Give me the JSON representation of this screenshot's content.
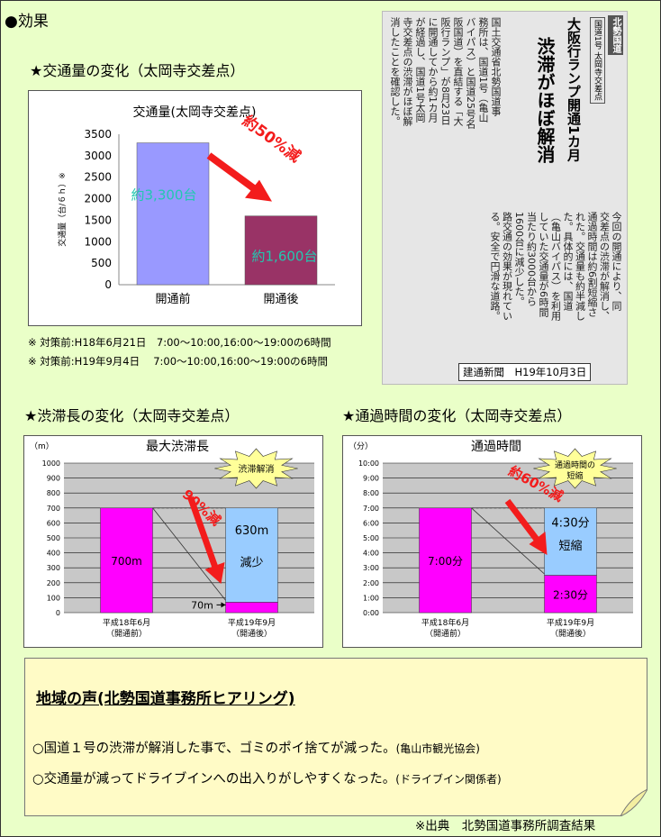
{
  "heading": "●効果",
  "traffic": {
    "section_title": "★交通量の変化（太岡寺交差点）",
    "notes": [
      "※ 対策前:H18年6月21日　7:00〜10:00,16:00〜19:00の6時間",
      "※ 対策前:H19年9月4日　 7:00〜10:00,16:00〜19:00の6時間"
    ]
  },
  "jam": {
    "section_title": "★渋滞長の変化（太岡寺交差点）"
  },
  "time": {
    "section_title": "★通過時間の変化（太岡寺交差点）"
  },
  "news": {
    "caption": "建通新聞　H19年10月3日",
    "tag": "北勢国道",
    "tag2": "国道1号 太岡寺交差点",
    "headline": "大阪行ランプ開通1カ月",
    "subhead": "渋滞がほぼ解消",
    "columns": [
      "国土交通省北勢国道事",
      "務所は、国道1号（亀山",
      "バイパス）と国道25号名",
      "阪国道）を直結する「大",
      "阪行ランプ」が8月23日",
      "に開通してから約1カ月",
      "が経過し、国道1号太岡",
      "寺交差点の渋滞がほぼ解",
      "消したことを確認した。",
      "今回の開通により、同",
      "交差点の渋滞が解消し、",
      "通過時間は約6割短縮さ",
      "れた。交通量も約半減し",
      "た。具体的には、国道",
      "（亀山バイパス）を利用",
      "していた交通量が6時間",
      "当たり約3000台から",
      "1600台に減少した。",
      "路交通の効果が現れてい",
      "る。安全で円滑な道路。"
    ]
  },
  "chart_data": [
    {
      "type": "bar",
      "title": "交通量(太岡寺交差点)",
      "ylabel": "交通量（台/６ｈ）※",
      "categories": [
        "開通前",
        "開通後"
      ],
      "values": [
        3300,
        1600
      ],
      "yticks": [
        "0",
        "500",
        "1000",
        "1500",
        "2000",
        "2500",
        "3000",
        "3500"
      ],
      "ylim": [
        0,
        3500
      ],
      "data_labels": [
        "約3,300台",
        "約1,600台"
      ],
      "annotation": "約50%減",
      "colors": [
        "#9999ff",
        "#993366"
      ]
    },
    {
      "type": "bar",
      "title": "最大渋滞長",
      "unit": "（m）",
      "categories": [
        "平成18年6月",
        "平成19年9月"
      ],
      "sublabels": [
        "（開通前）",
        "（開通後）"
      ],
      "values": [
        700,
        70
      ],
      "reduced": 630,
      "yticks": [
        "0",
        "100",
        "200",
        "300",
        "400",
        "500",
        "600",
        "700",
        "800",
        "900",
        "1000"
      ],
      "ylim": [
        0,
        1000
      ],
      "data_labels": [
        "700m",
        "70m"
      ],
      "reduced_labels": [
        "630m",
        "減少"
      ],
      "annotation": "90%減",
      "burst": "渋滞解消",
      "colors": [
        "#ff00ff",
        "#99ccff"
      ]
    },
    {
      "type": "bar",
      "title": "通過時間",
      "unit": "（分）",
      "categories": [
        "平成18年6月",
        "平成19年9月"
      ],
      "sublabels": [
        "（開通前）",
        "（開通後）"
      ],
      "values": [
        7.0,
        2.5
      ],
      "reduced": 4.5,
      "yticks": [
        "0:00",
        "1:00",
        "2:00",
        "3:00",
        "4:00",
        "5:00",
        "6:00",
        "7:00",
        "8:00",
        "9:00",
        "10:00"
      ],
      "ylim": [
        0,
        10
      ],
      "data_labels": [
        "7:00分",
        "2:30分"
      ],
      "reduced_labels": [
        "4:30分",
        "短縮"
      ],
      "annotation": "約60%減",
      "burst": [
        "通過時間の",
        "短縮"
      ],
      "colors": [
        "#ff00ff",
        "#99ccff"
      ]
    }
  ],
  "voice": {
    "title": "地域の声(北勢国道事務所ヒアリング)",
    "lines": [
      {
        "text": "○国道１号の渋滞が解消した事で、ゴミのポイ捨てが減った。",
        "source": "(亀山市観光協会)"
      },
      {
        "text": "○交通量が減ってドライブインへの出入りがしやすくなった。",
        "source": "(ドライブイン関係者)"
      }
    ]
  },
  "source": "※出典　北勢国道事務所調査結果"
}
